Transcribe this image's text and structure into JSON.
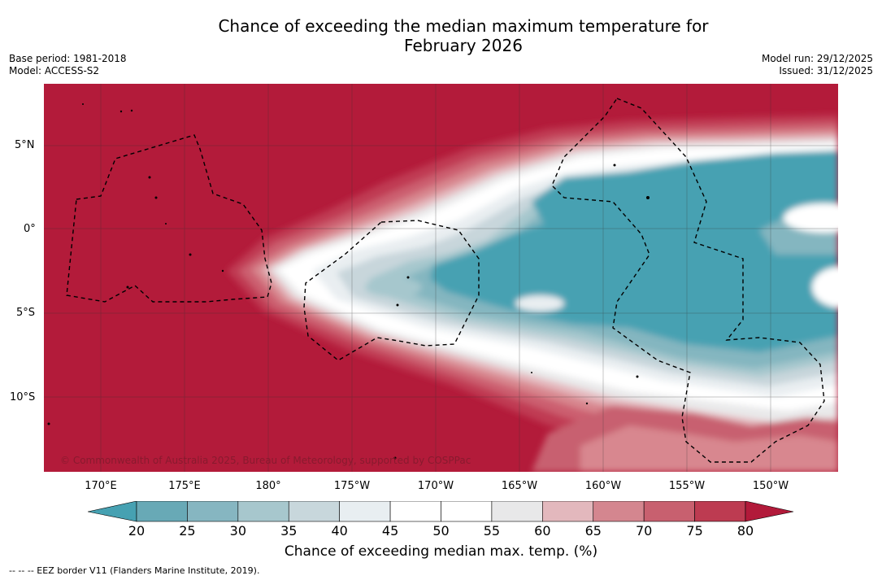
{
  "header": {
    "title_line1": "Chance of exceeding the median maximum temperature for",
    "title_line2": "February 2026",
    "base_period": "Base period: 1981-2018",
    "model": "Model: ACCESS-S2",
    "model_run": "Model run: 29/12/2025",
    "issued": "Issued: 31/12/2025"
  },
  "map": {
    "lat_labels": [
      "5°N",
      "0°",
      "5°S",
      "10°S"
    ],
    "lon_labels": [
      "170°E",
      "175°E",
      "180°",
      "175°W",
      "170°W",
      "165°W",
      "160°W",
      "155°W",
      "150°W"
    ],
    "copyright": "© Commonwealth of Australia 2025, Bureau of Meteorology, supported by COSPPac",
    "colors": {
      "above80": "#b31b3a",
      "75_80": "#c03a52",
      "70_75": "#cc5f70",
      "65_70": "#d8878f",
      "60_65": "#e4b8bd",
      "55_60": "#e9e9ea",
      "45_55": "#ffffff",
      "40_45": "#e9eef1",
      "35_40": "#c8d6db",
      "30_35": "#a6c7cd",
      "25_30": "#84b6c0",
      "below25": "#46a1b2"
    }
  },
  "colorbar": {
    "ticks": [
      "20",
      "25",
      "30",
      "35",
      "40",
      "45",
      "50",
      "55",
      "60",
      "65",
      "70",
      "75",
      "80"
    ],
    "colors": [
      "#68a9b6",
      "#86b6c1",
      "#a7c7cd",
      "#c8d7dc",
      "#e8eef1",
      "#ffffff",
      "#ffffff",
      "#e8e8e9",
      "#e3b8bd",
      "#d4868f",
      "#c8606f",
      "#bd3b51"
    ],
    "low_color": "#46a1b2",
    "high_color": "#b21a3a",
    "label": "Chance of exceeding median max. temp. (%)"
  },
  "footnote": "--  --  -- EEZ border V11 (Flanders Marine Institute, 2019)."
}
